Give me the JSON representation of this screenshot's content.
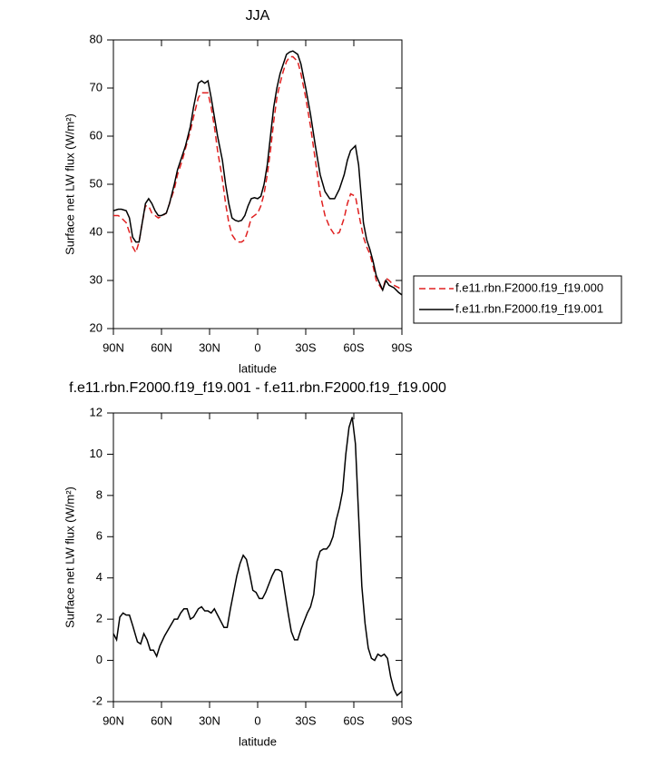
{
  "chart_data": [
    {
      "type": "line",
      "title": "JJA",
      "xlabel": "latitude",
      "ylabel": "Surface net LW flux (W/m²)",
      "x": [
        90,
        87,
        85,
        82,
        80,
        78,
        76,
        74,
        72,
        70,
        68,
        66,
        64,
        62,
        60,
        57,
        55,
        52,
        50,
        47,
        45,
        42,
        40,
        37,
        35,
        33,
        31,
        29,
        27,
        25,
        22,
        20,
        18,
        16,
        14,
        12,
        10,
        8,
        6,
        4,
        2,
        0,
        -2,
        -4,
        -6,
        -8,
        -10,
        -12,
        -14,
        -16,
        -18,
        -20,
        -22,
        -25,
        -27,
        -30,
        -33,
        -36,
        -39,
        -42,
        -45,
        -48,
        -51,
        -54,
        -56,
        -58,
        -61,
        -63,
        -66,
        -68,
        -70,
        -72,
        -74,
        -76,
        -78,
        -80,
        -82,
        -85,
        -88,
        -90
      ],
      "series": [
        {
          "name": "f.e11.rbn.F2000.f19_f19.000",
          "color": "#e02020",
          "linestyle": "dashed",
          "values": [
            43.5,
            43.5,
            43,
            42,
            40,
            37,
            35.8,
            38,
            42,
            45.5,
            45.5,
            44,
            43.5,
            43,
            43.3,
            44,
            46,
            49,
            52,
            55,
            57.5,
            61,
            64,
            68,
            69,
            69,
            69,
            66,
            62,
            57,
            51,
            46,
            42,
            39.5,
            38.5,
            38,
            38,
            38.5,
            40.5,
            43,
            43.5,
            44,
            45.5,
            48,
            52,
            57,
            63,
            68,
            71,
            73.5,
            75.5,
            76.5,
            76.5,
            75.5,
            73,
            68,
            62,
            55,
            48,
            43.5,
            41,
            39.5,
            40,
            43,
            46,
            48,
            47.5,
            44,
            39,
            37,
            35.5,
            33,
            30,
            29,
            28,
            30.5,
            30,
            29,
            28.5,
            28
          ]
        },
        {
          "name": "f.e11.rbn.F2000.f19_f19.001",
          "color": "#000000",
          "linestyle": "solid",
          "values": [
            44.5,
            44.8,
            44.8,
            44.5,
            43,
            39,
            38,
            38,
            42,
            46,
            47,
            46,
            44.5,
            43.5,
            43.5,
            44,
            46,
            50,
            53,
            56,
            58,
            62,
            66,
            71,
            71.5,
            71,
            71.5,
            68,
            64,
            60,
            55,
            50,
            46,
            43,
            42.5,
            42.3,
            42.5,
            43.5,
            45.5,
            47,
            47.2,
            47,
            47.5,
            50,
            54,
            60,
            66,
            70,
            73,
            75,
            77,
            77.5,
            77.7,
            77,
            75,
            70,
            64.5,
            58,
            52,
            48.5,
            47,
            47,
            49,
            52,
            55,
            57,
            58,
            54,
            42,
            38.5,
            36.5,
            34,
            31,
            29.5,
            28,
            30,
            29,
            28.5,
            27.5,
            27
          ]
        }
      ],
      "xlim": [
        90,
        -90
      ],
      "xticks": [
        {
          "value": 90,
          "label": "90N"
        },
        {
          "value": 60,
          "label": "60N"
        },
        {
          "value": 30,
          "label": "30N"
        },
        0,
        {
          "value": -30,
          "label": "30S"
        },
        {
          "value": -60,
          "label": "60S"
        },
        {
          "value": -90,
          "label": "90S"
        }
      ],
      "ylim": [
        20,
        80
      ],
      "yticks": [
        20,
        30,
        40,
        50,
        60,
        70,
        80
      ],
      "grid": false,
      "legend": "right"
    },
    {
      "type": "line",
      "title": "f.e11.rbn.F2000.f19_f19.001 - f.e11.rbn.F2000.f19_f19.000",
      "xlabel": "latitude",
      "ylabel": "Surface net LW flux (W/m²)",
      "x": [
        90,
        88,
        86,
        84,
        82,
        80,
        78,
        75,
        73,
        71,
        69,
        67,
        65,
        63,
        61,
        58,
        55,
        52,
        50,
        48,
        46,
        44,
        42,
        40,
        37,
        35,
        33,
        31,
        29,
        27,
        25,
        23,
        21,
        19,
        17,
        15,
        13,
        11,
        9,
        7,
        5,
        3,
        1,
        -1,
        -3,
        -5,
        -7,
        -9,
        -11,
        -13,
        -15,
        -17,
        -19,
        -21,
        -23,
        -25,
        -27,
        -29,
        -31,
        -33,
        -35,
        -37,
        -39,
        -41,
        -43,
        -45,
        -47,
        -49,
        -51,
        -53,
        -55,
        -57,
        -59,
        -61,
        -63,
        -65,
        -67,
        -69,
        -71,
        -73,
        -75,
        -77,
        -79,
        -81,
        -83,
        -85,
        -87,
        -90
      ],
      "values": [
        1.3,
        1.0,
        2.1,
        2.3,
        2.2,
        2.2,
        1.7,
        0.9,
        0.8,
        1.3,
        1.0,
        0.5,
        0.5,
        0.2,
        0.7,
        1.2,
        1.6,
        2.0,
        2.0,
        2.3,
        2.5,
        2.5,
        2.0,
        2.1,
        2.5,
        2.6,
        2.4,
        2.4,
        2.3,
        2.5,
        2.2,
        1.9,
        1.6,
        1.6,
        2.5,
        3.3,
        4.1,
        4.7,
        5.1,
        4.9,
        4.2,
        3.4,
        3.3,
        3.0,
        3.0,
        3.3,
        3.7,
        4.1,
        4.4,
        4.4,
        4.3,
        3.3,
        2.3,
        1.4,
        1.0,
        1.0,
        1.5,
        1.9,
        2.3,
        2.6,
        3.2,
        4.8,
        5.3,
        5.4,
        5.4,
        5.6,
        6.0,
        6.8,
        7.4,
        8.2,
        10.0,
        11.3,
        11.8,
        10.5,
        7.0,
        3.6,
        1.8,
        0.6,
        0.1,
        0.0,
        0.3,
        0.2,
        0.3,
        0.1,
        -0.8,
        -1.4,
        -1.7,
        -1.5
      ],
      "color": "#000000",
      "xlim": [
        90,
        -90
      ],
      "xticks": [
        {
          "value": 90,
          "label": "90N"
        },
        {
          "value": 60,
          "label": "60N"
        },
        {
          "value": 30,
          "label": "30N"
        },
        0,
        {
          "value": -30,
          "label": "30S"
        },
        {
          "value": -60,
          "label": "60S"
        },
        {
          "value": -90,
          "label": "90S"
        }
      ],
      "ylim": [
        -2,
        12
      ],
      "yticks": [
        -2,
        0,
        2,
        4,
        6,
        8,
        10,
        12
      ],
      "grid": false
    }
  ]
}
